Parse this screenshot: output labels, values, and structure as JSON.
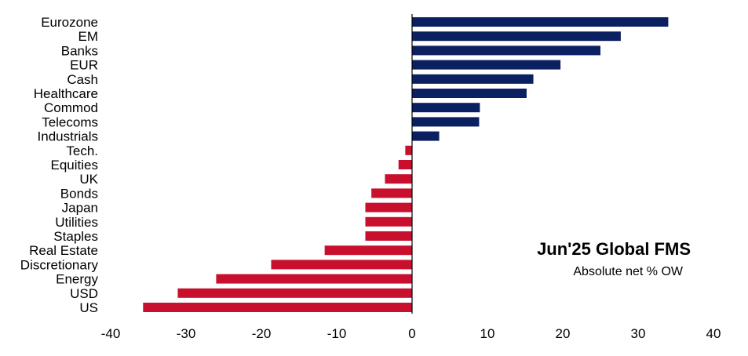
{
  "chart_data": {
    "type": "bar",
    "orientation": "horizontal",
    "title": "Jun'25 Global FMS",
    "subtitle": "Absolute net % OW",
    "categories": [
      "Eurozone",
      "EM",
      "Banks",
      "EUR",
      "Cash",
      "Healthcare",
      "Commod",
      "Telecoms",
      "Industrials",
      "Tech.",
      "Equities",
      "UK",
      "Bonds",
      "Japan",
      "Utilities",
      "Staples",
      "Real Estate",
      "Discretionary",
      "Energy",
      "USD",
      "US"
    ],
    "values": [
      34,
      27.7,
      25,
      19.7,
      16.1,
      15.2,
      9,
      8.9,
      3.6,
      -0.9,
      -1.8,
      -3.6,
      -5.4,
      -6.2,
      -6.2,
      -6.2,
      -11.6,
      -18.7,
      -26,
      -31.1,
      -35.7
    ],
    "xlim": [
      -40,
      40
    ],
    "xticks": [
      "-40",
      "-30",
      "-20",
      "-10",
      "0",
      "10",
      "20",
      "30",
      "40"
    ],
    "colors": {
      "positive": "#0b2060",
      "negative": "#c8102e"
    },
    "grid": false,
    "xlabel": "",
    "ylabel": ""
  }
}
